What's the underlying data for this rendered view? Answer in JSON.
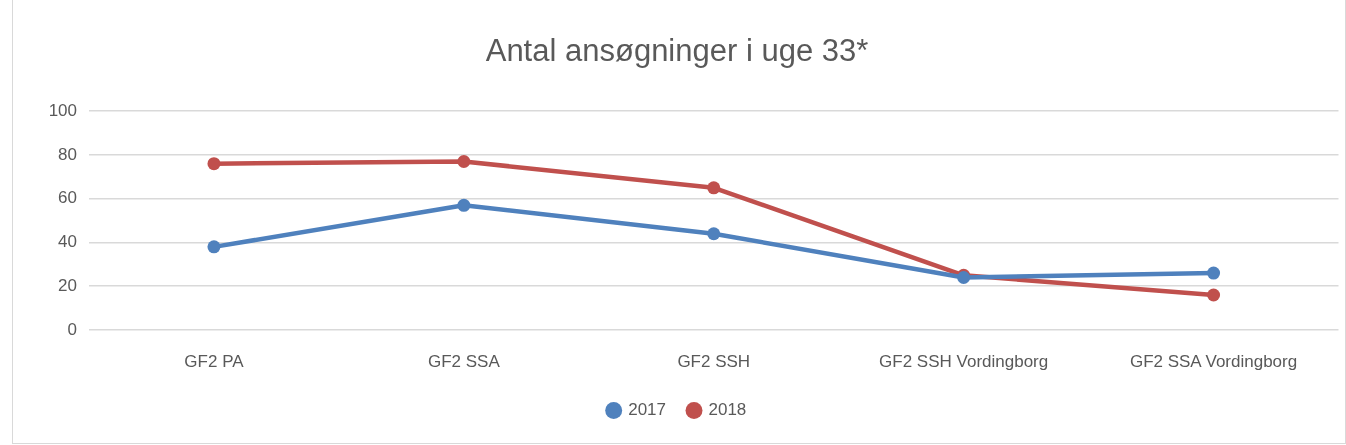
{
  "chart_data": {
    "type": "line",
    "title": "Antal ansøgninger i uge 33*",
    "categories": [
      "GF2 PA",
      "GF2 SSA",
      "GF2 SSH",
      "GF2 SSH Vordingborg",
      "GF2 SSA Vordingborg"
    ],
    "series": [
      {
        "name": "2017",
        "color": "#4f81bd",
        "values": [
          38,
          57,
          44,
          24,
          26
        ]
      },
      {
        "name": "2018",
        "color": "#c0504d",
        "values": [
          76,
          77,
          65,
          25,
          16
        ]
      }
    ],
    "ylim": [
      0,
      100
    ],
    "yticks": [
      0,
      20,
      40,
      60,
      80,
      100
    ],
    "grid": "y",
    "legend": "bottom",
    "marker": "circle",
    "line_style": "solid"
  }
}
